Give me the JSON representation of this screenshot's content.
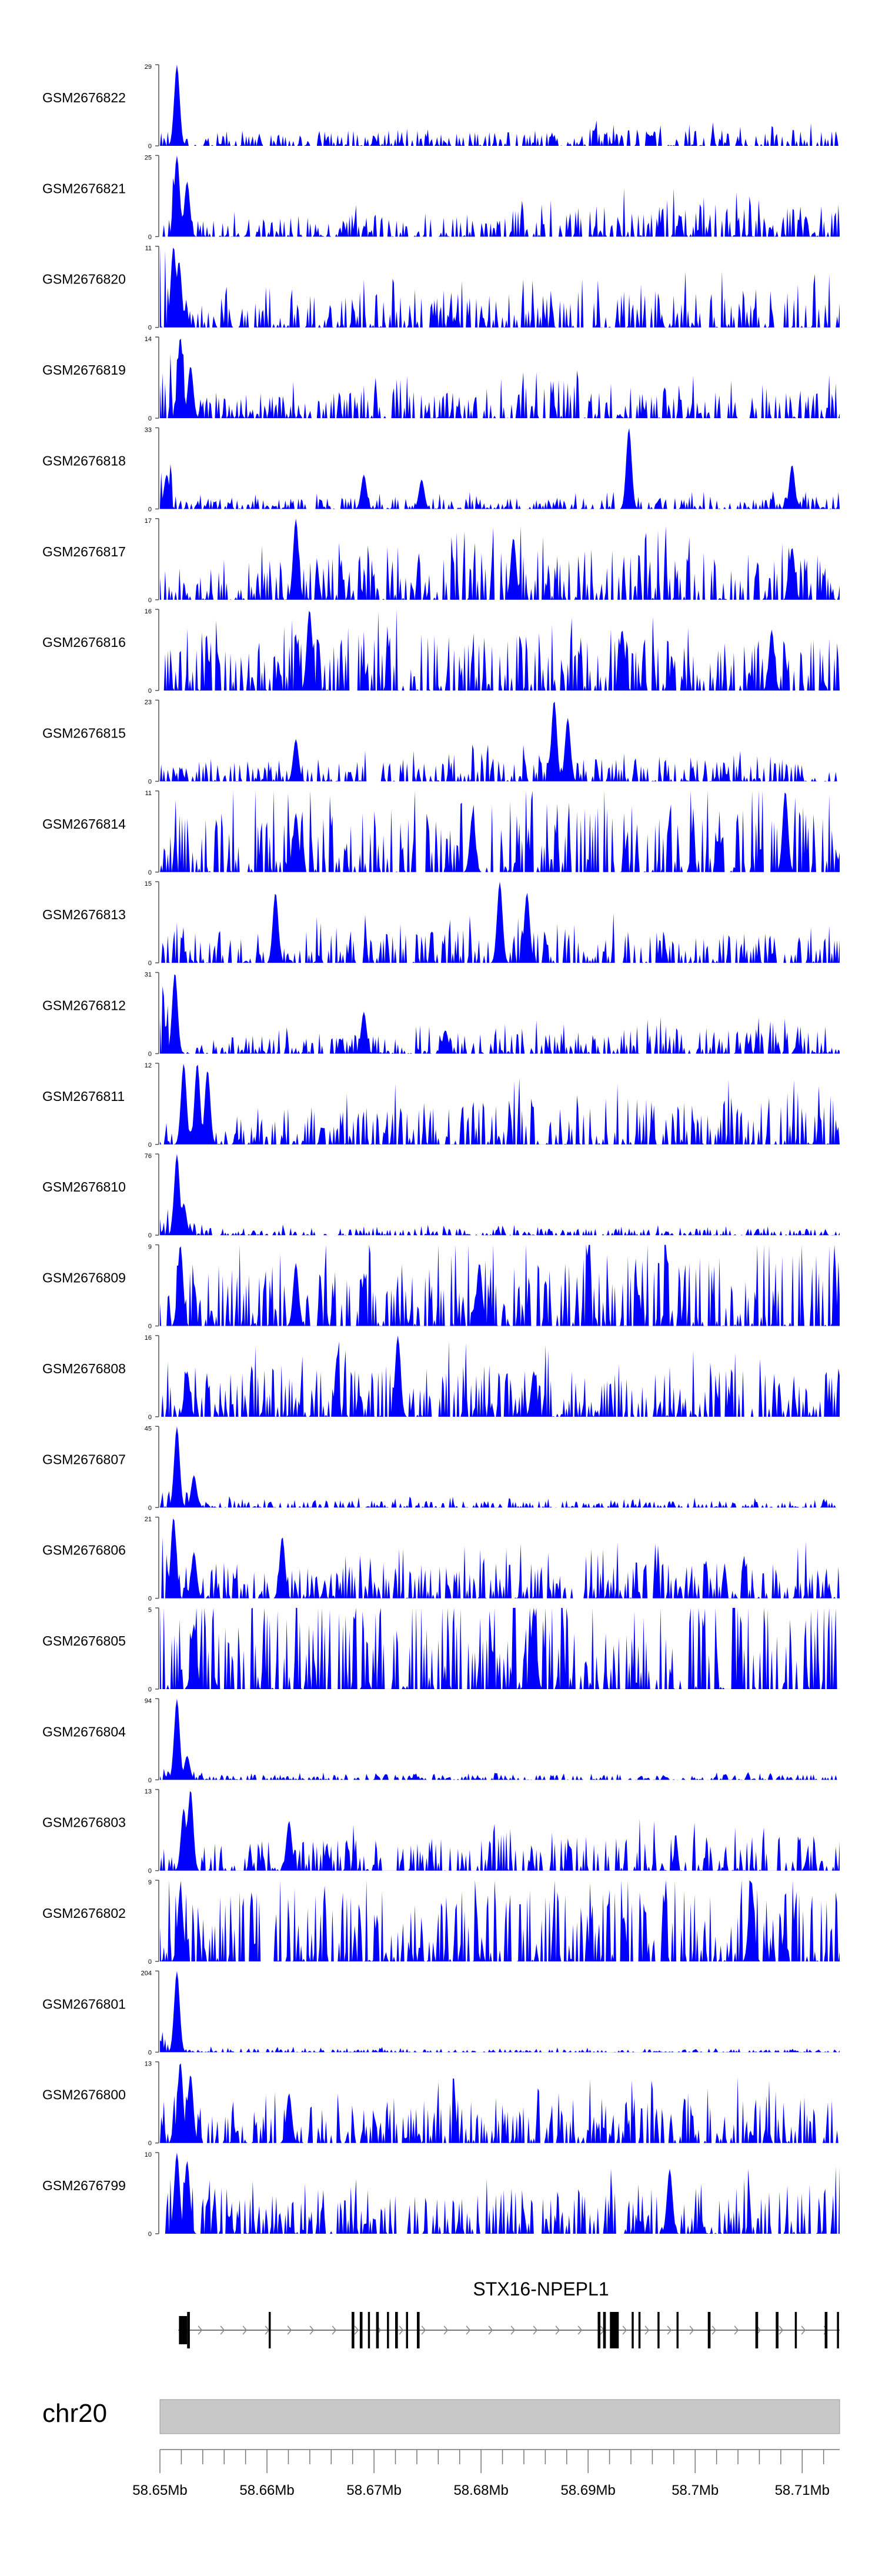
{
  "chart_data": {
    "type": "area",
    "title": "",
    "xlabel": "",
    "ylabel": "",
    "chromosome": "chr20",
    "x_range_mb": [
      58.65,
      58.7135
    ],
    "x_ticks": [
      "58.65Mb",
      "58.66Mb",
      "58.67Mb",
      "58.68Mb",
      "58.69Mb",
      "58.7Mb",
      "58.71Mb"
    ],
    "track_color": "#0000ff",
    "tracks": [
      {
        "name": "GSM2676822",
        "ymax": 29,
        "profile": [
          [
            0.01,
            30
          ],
          [
            0.025,
            8
          ],
          [
            0.35,
            9
          ],
          [
            0.65,
            14
          ],
          [
            1,
            12
          ]
        ],
        "peaks": [
          [
            0.025,
            29
          ]
        ]
      },
      {
        "name": "GSM2676821",
        "ymax": 25,
        "profile": [
          [
            0.02,
            35
          ],
          [
            0.03,
            12
          ],
          [
            0.5,
            20
          ],
          [
            0.7,
            26
          ],
          [
            1,
            24
          ]
        ],
        "peaks": [
          [
            0.025,
            25
          ],
          [
            0.04,
            17
          ]
        ]
      },
      {
        "name": "GSM2676820",
        "ymax": 11,
        "profile": [
          [
            0.01,
            60
          ],
          [
            0.03,
            22
          ],
          [
            0.5,
            28
          ],
          [
            1,
            30
          ]
        ],
        "peaks": [
          [
            0.02,
            11
          ],
          [
            0.028,
            9
          ]
        ]
      },
      {
        "name": "GSM2676819",
        "ymax": 14,
        "profile": [
          [
            0.02,
            55
          ],
          [
            0.05,
            18
          ],
          [
            0.6,
            25
          ],
          [
            1,
            22
          ]
        ],
        "peaks": [
          [
            0.03,
            14
          ],
          [
            0.045,
            9
          ]
        ]
      },
      {
        "name": "GSM2676818",
        "ymax": 33,
        "profile": [
          [
            0.01,
            30
          ],
          [
            0.03,
            8
          ],
          [
            1,
            10
          ]
        ],
        "peaks": [
          [
            0.01,
            14
          ],
          [
            0.3,
            14
          ],
          [
            0.385,
            12
          ],
          [
            0.69,
            33
          ],
          [
            0.93,
            18
          ]
        ]
      },
      {
        "name": "GSM2676817",
        "ymax": 17,
        "profile": [
          [
            0.01,
            25
          ],
          [
            0.2,
            35
          ],
          [
            0.6,
            40
          ],
          [
            1,
            35
          ]
        ],
        "peaks": [
          [
            0.2,
            17
          ],
          [
            0.52,
            13
          ],
          [
            0.93,
            11
          ]
        ]
      },
      {
        "name": "GSM2676816",
        "ymax": 16,
        "profile": [
          [
            0.01,
            35
          ],
          [
            0.35,
            45
          ],
          [
            1,
            40
          ]
        ],
        "peaks": [
          [
            0.22,
            16
          ],
          [
            0.68,
            12
          ],
          [
            0.9,
            12
          ]
        ]
      },
      {
        "name": "GSM2676815",
        "ymax": 23,
        "profile": [
          [
            0.05,
            12
          ],
          [
            0.5,
            20
          ],
          [
            0.97,
            15
          ]
        ],
        "peaks": [
          [
            0.2,
            12
          ],
          [
            0.58,
            23
          ],
          [
            0.6,
            18
          ]
        ]
      },
      {
        "name": "GSM2676814",
        "ymax": 11,
        "profile": [
          [
            0.01,
            45
          ],
          [
            0.5,
            55
          ],
          [
            1,
            50
          ]
        ],
        "peaks": [
          [
            0.92,
            11
          ],
          [
            0.46,
            8
          ],
          [
            0.2,
            8
          ]
        ]
      },
      {
        "name": "GSM2676813",
        "ymax": 15,
        "profile": [
          [
            0.02,
            22
          ],
          [
            0.5,
            28
          ],
          [
            0.98,
            22
          ]
        ],
        "peaks": [
          [
            0.17,
            13
          ],
          [
            0.5,
            15
          ],
          [
            0.54,
            13
          ]
        ]
      },
      {
        "name": "GSM2676812",
        "ymax": 31,
        "profile": [
          [
            0.01,
            45
          ],
          [
            0.03,
            12
          ],
          [
            0.6,
            18
          ],
          [
            1,
            22
          ]
        ],
        "peaks": [
          [
            0.022,
            31
          ],
          [
            0.3,
            16
          ],
          [
            0.42,
            9
          ]
        ]
      },
      {
        "name": "GSM2676811",
        "ymax": 12,
        "profile": [
          [
            0.02,
            12
          ],
          [
            0.09,
            12
          ],
          [
            0.15,
            20
          ],
          [
            0.4,
            35
          ],
          [
            1,
            38
          ]
        ],
        "peaks": [
          [
            0.035,
            12
          ],
          [
            0.055,
            12
          ],
          [
            0.07,
            11
          ]
        ]
      },
      {
        "name": "GSM2676810",
        "ymax": 76,
        "profile": [
          [
            0.02,
            15
          ],
          [
            0.06,
            6
          ],
          [
            1,
            5
          ]
        ],
        "peaks": [
          [
            0.025,
            76
          ],
          [
            0.035,
            30
          ]
        ]
      },
      {
        "name": "GSM2676809",
        "ymax": 9,
        "profile": [
          [
            0.01,
            50
          ],
          [
            0.2,
            45
          ],
          [
            0.6,
            55
          ],
          [
            1,
            55
          ]
        ],
        "peaks": [
          [
            0.03,
            9
          ],
          [
            0.2,
            7
          ],
          [
            0.47,
            7
          ]
        ]
      },
      {
        "name": "GSM2676808",
        "ymax": 16,
        "profile": [
          [
            0.01,
            35
          ],
          [
            0.35,
            40
          ],
          [
            1,
            38
          ]
        ],
        "peaks": [
          [
            0.35,
            16
          ],
          [
            0.04,
            9
          ],
          [
            0.55,
            9
          ]
        ]
      },
      {
        "name": "GSM2676807",
        "ymax": 45,
        "profile": [
          [
            0.02,
            18
          ],
          [
            0.06,
            6
          ],
          [
            1,
            5
          ]
        ],
        "peaks": [
          [
            0.025,
            45
          ],
          [
            0.05,
            18
          ]
        ]
      },
      {
        "name": "GSM2676806",
        "ymax": 21,
        "profile": [
          [
            0.01,
            45
          ],
          [
            0.03,
            20
          ],
          [
            0.5,
            28
          ],
          [
            1,
            30
          ]
        ],
        "peaks": [
          [
            0.02,
            21
          ],
          [
            0.18,
            16
          ],
          [
            0.05,
            12
          ]
        ]
      },
      {
        "name": "GSM2676805",
        "ymax": 5,
        "profile": [
          [
            0.01,
            65
          ],
          [
            0.5,
            70
          ],
          [
            1,
            70
          ]
        ],
        "peaks": [
          [
            0.55,
            5
          ],
          [
            0.05,
            4
          ]
        ]
      },
      {
        "name": "GSM2676804",
        "ymax": 94,
        "profile": [
          [
            0.02,
            10
          ],
          [
            0.06,
            4
          ],
          [
            1,
            4
          ]
        ],
        "peaks": [
          [
            0.025,
            94
          ],
          [
            0.04,
            28
          ]
        ]
      },
      {
        "name": "GSM2676803",
        "ymax": 13,
        "profile": [
          [
            0.02,
            35
          ],
          [
            0.06,
            22
          ],
          [
            0.5,
            26
          ],
          [
            1,
            28
          ]
        ],
        "peaks": [
          [
            0.045,
            13
          ],
          [
            0.035,
            10
          ],
          [
            0.19,
            8
          ]
        ]
      },
      {
        "name": "GSM2676802",
        "ymax": 9,
        "profile": [
          [
            0.01,
            55
          ],
          [
            0.5,
            55
          ],
          [
            1,
            55
          ]
        ],
        "peaks": [
          [
            0.03,
            8
          ],
          [
            0.87,
            9
          ]
        ]
      },
      {
        "name": "GSM2676801",
        "ymax": 204,
        "profile": [
          [
            0.01,
            12
          ],
          [
            0.03,
            3
          ],
          [
            1,
            2
          ]
        ],
        "peaks": [
          [
            0.0,
            30
          ],
          [
            0.025,
            204
          ]
        ]
      },
      {
        "name": "GSM2676800",
        "ymax": 13,
        "profile": [
          [
            0.01,
            45
          ],
          [
            0.08,
            25
          ],
          [
            0.5,
            35
          ],
          [
            1,
            35
          ]
        ],
        "peaks": [
          [
            0.03,
            13
          ],
          [
            0.045,
            11
          ],
          [
            0.19,
            8
          ]
        ]
      },
      {
        "name": "GSM2676799",
        "ymax": 10,
        "profile": [
          [
            0.01,
            50
          ],
          [
            0.08,
            28
          ],
          [
            0.5,
            36
          ],
          [
            1,
            36
          ]
        ],
        "peaks": [
          [
            0.025,
            10
          ],
          [
            0.04,
            9
          ],
          [
            0.75,
            8
          ]
        ]
      }
    ],
    "gene": {
      "name": "STX16-NPEPL1",
      "start": 0.027,
      "end": 1.0,
      "strand": "+",
      "exons": [
        [
          0.028,
          0.04
        ],
        [
          0.04,
          0.044
        ],
        [
          0.16,
          0.163
        ],
        [
          0.282,
          0.286
        ],
        [
          0.294,
          0.298
        ],
        [
          0.306,
          0.309
        ],
        [
          0.318,
          0.322
        ],
        [
          0.334,
          0.337
        ],
        [
          0.346,
          0.35
        ],
        [
          0.362,
          0.365
        ],
        [
          0.378,
          0.382
        ],
        [
          0.644,
          0.648
        ],
        [
          0.652,
          0.656
        ],
        [
          0.662,
          0.675
        ],
        [
          0.694,
          0.697
        ],
        [
          0.704,
          0.707
        ],
        [
          0.732,
          0.735
        ],
        [
          0.76,
          0.763
        ],
        [
          0.806,
          0.81
        ],
        [
          0.876,
          0.88
        ],
        [
          0.906,
          0.91
        ],
        [
          0.934,
          0.937
        ],
        [
          0.978,
          0.982
        ],
        [
          0.996,
          0.999
        ]
      ]
    }
  }
}
